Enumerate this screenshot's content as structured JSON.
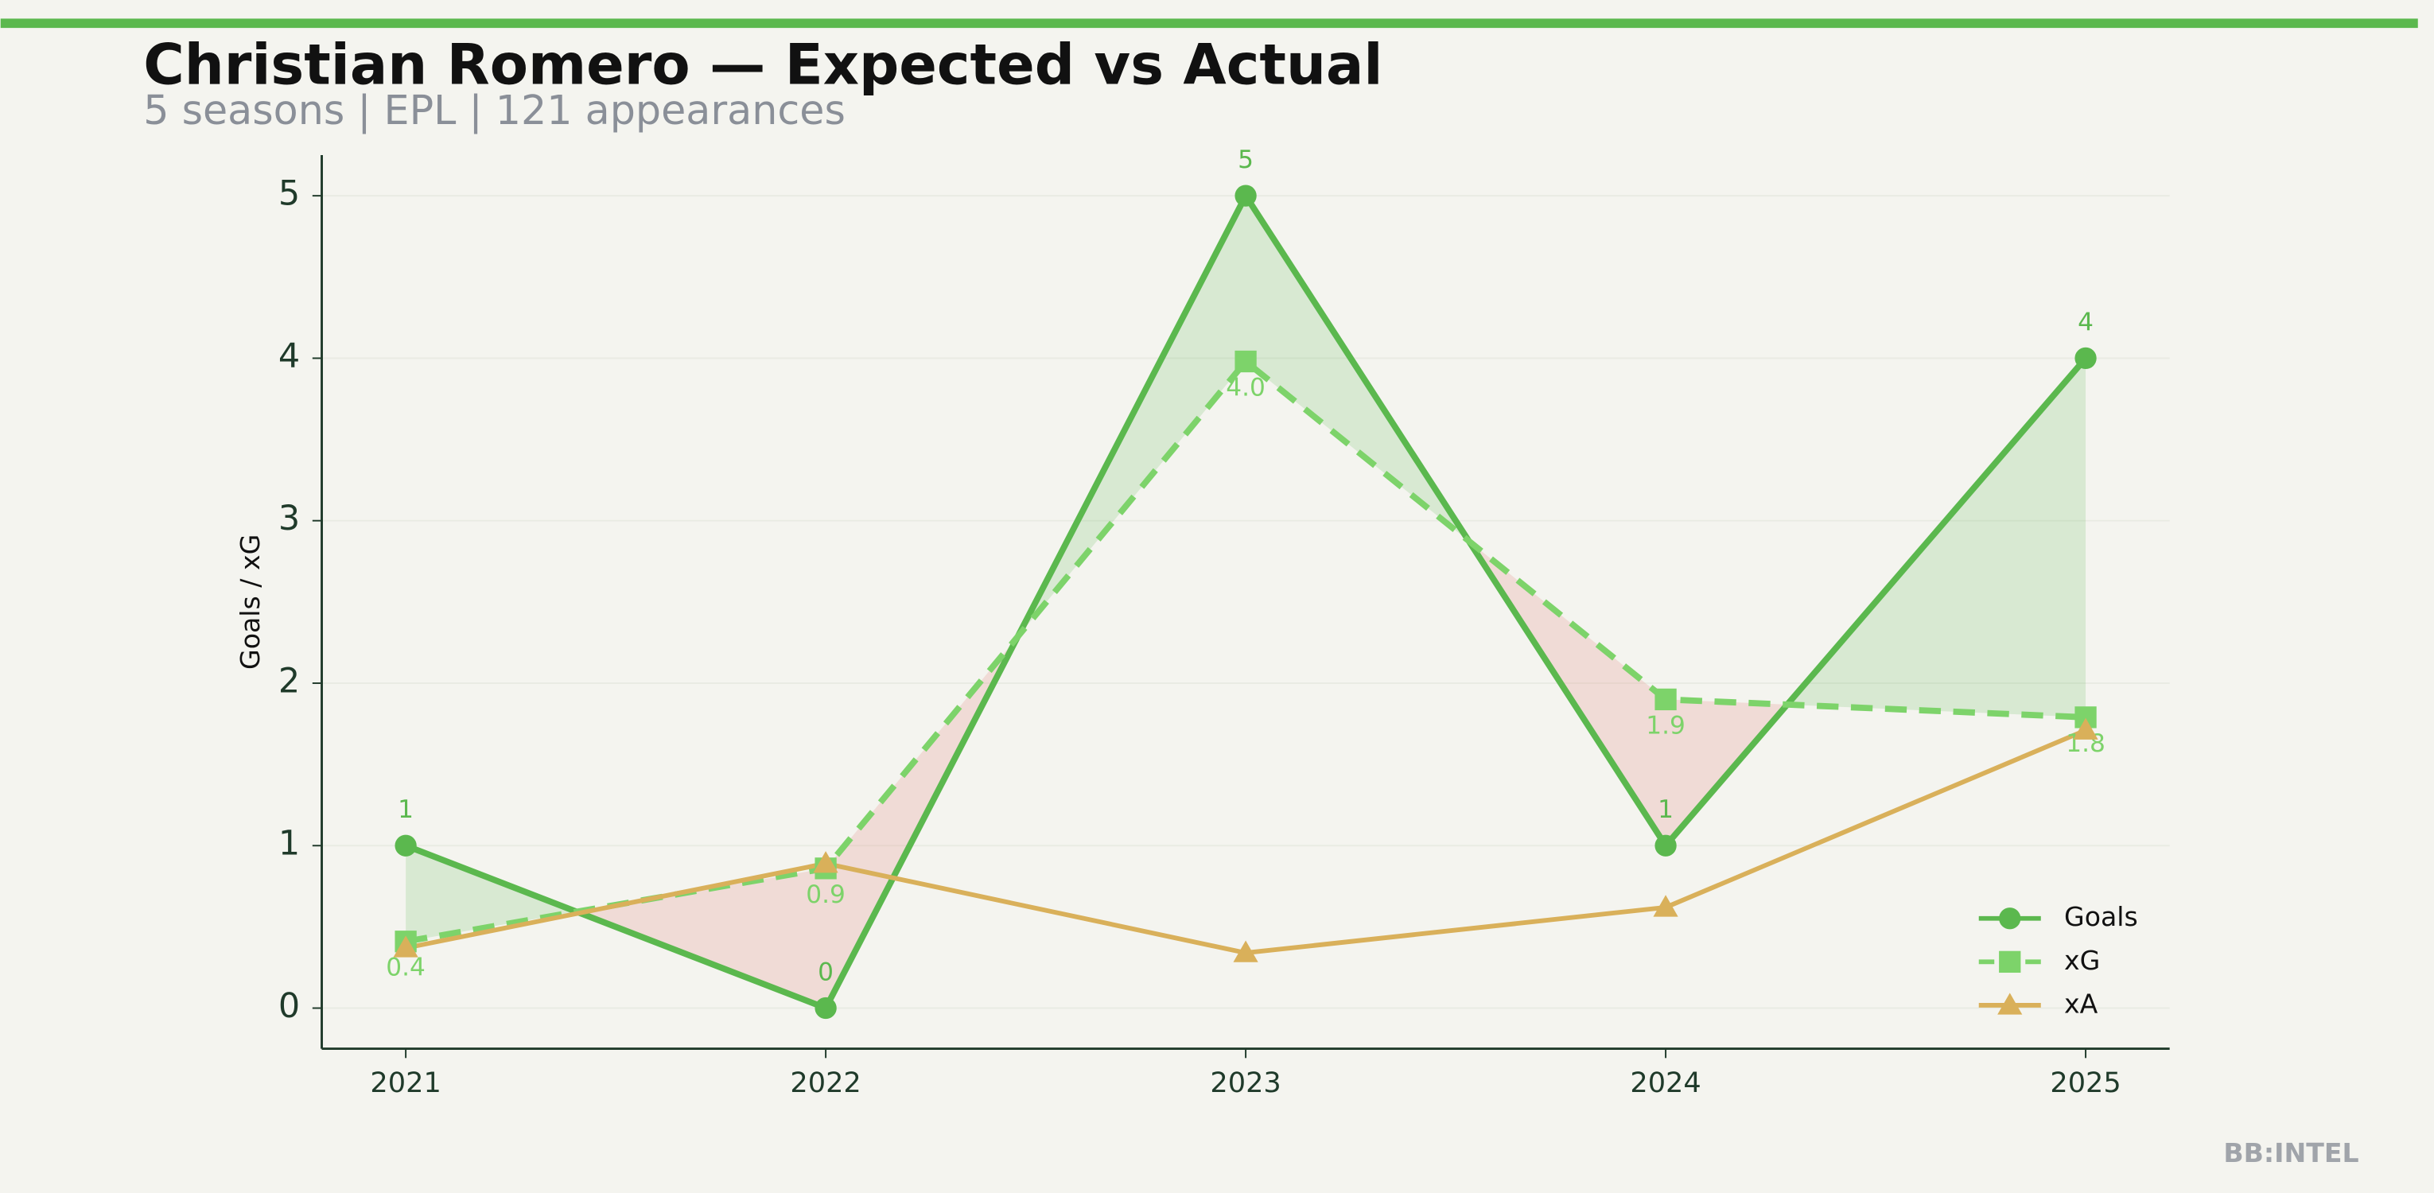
{
  "chart_data": {
    "type": "line",
    "title": "Christian Romero — Expected vs Actual",
    "subtitle": "5 seasons | EPL | 121 appearances",
    "y_label": "Goals / xG",
    "watermark": "BB:INTEL",
    "categories": [
      "2021",
      "2022",
      "2023",
      "2024",
      "2025"
    ],
    "series": [
      {
        "name": "Goals",
        "color": "#5bb84e",
        "marker": "circle",
        "dash": "solid",
        "values": [
          1,
          0,
          5,
          1,
          4
        ],
        "value_labels": [
          "1",
          "0",
          "5",
          "1",
          "4"
        ]
      },
      {
        "name": "xG",
        "color": "#7dd36a",
        "marker": "square",
        "dash": "dashed",
        "values": [
          0.41,
          0.86,
          3.98,
          1.9,
          1.79
        ],
        "value_labels": [
          "0.4",
          "0.9",
          "4.0",
          "1.9",
          "1.8"
        ]
      },
      {
        "name": "xA",
        "color": "#d9b05a",
        "marker": "triangle",
        "dash": "solid",
        "values": [
          0.37,
          0.89,
          0.34,
          0.62,
          1.71
        ]
      }
    ],
    "fill_between": {
      "over_color": "#5bb84e",
      "under_color": "#e8a39a"
    },
    "ylim": [
      -0.25,
      5.25
    ],
    "yticks": [
      0,
      1,
      2,
      3,
      4,
      5
    ],
    "grid": true,
    "legend": "lower right"
  }
}
